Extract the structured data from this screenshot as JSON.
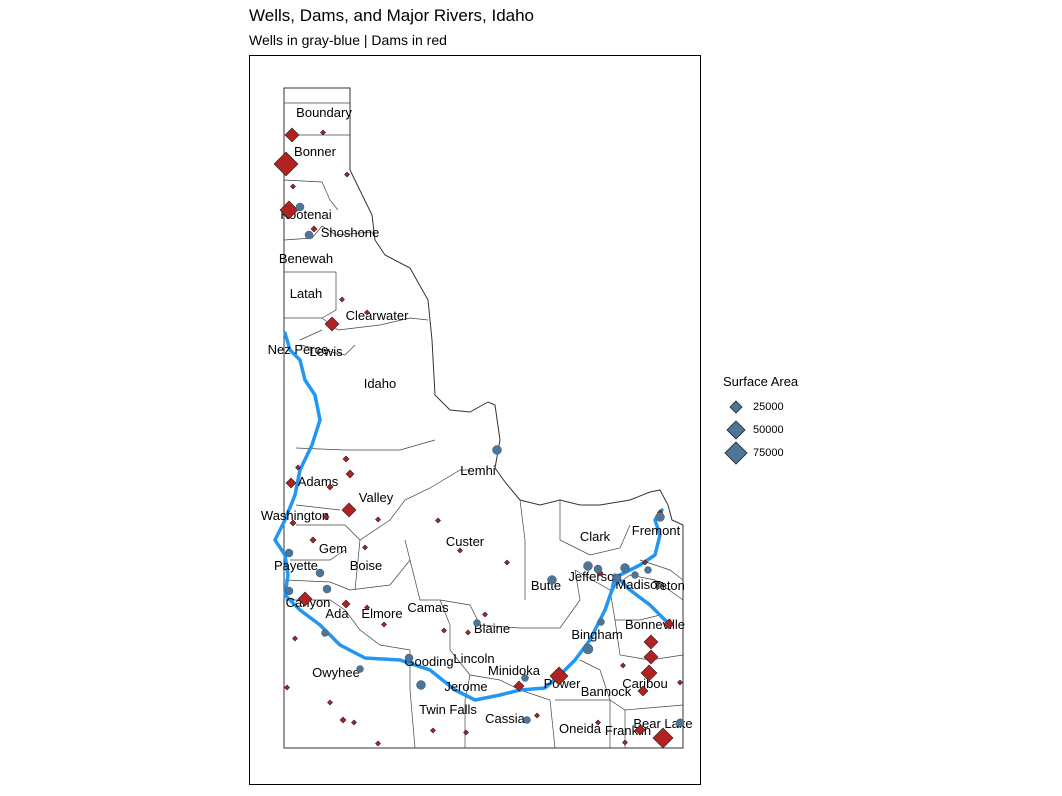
{
  "title": "Wells, Dams, and Major Rivers, Idaho",
  "subtitle": "Wells in gray-blue | Dams in red",
  "colors": {
    "wells": "#4e7595",
    "dams": "#b22222",
    "river": "#2196f3"
  },
  "legend": {
    "title": "Surface Area",
    "items": [
      {
        "label": "25000",
        "value": 25000
      },
      {
        "label": "50000",
        "value": 50000
      },
      {
        "label": "75000",
        "value": 75000
      }
    ]
  },
  "counties": [
    "Boundary",
    "Bonner",
    "Kootenai",
    "Shoshone",
    "Benewah",
    "Latah",
    "Clearwater",
    "Nez Perce",
    "Lewis",
    "Idaho",
    "Lemhi",
    "Adams",
    "Valley",
    "Washington",
    "Gem",
    "Custer",
    "Clark",
    "Fremont",
    "Payette",
    "Boise",
    "Jefferson",
    "Madison",
    "Teton",
    "Butte",
    "Canyon",
    "Ada",
    "Elmore",
    "Camas",
    "Blaine",
    "Bonneville",
    "Bingham",
    "Gooding",
    "Lincoln",
    "Minidoka",
    "Owyhee",
    "Jerome",
    "Power",
    "Caribou",
    "Bannock",
    "Twin Falls",
    "Cassia",
    "Bear Lake",
    "Oneida",
    "Franklin"
  ]
}
